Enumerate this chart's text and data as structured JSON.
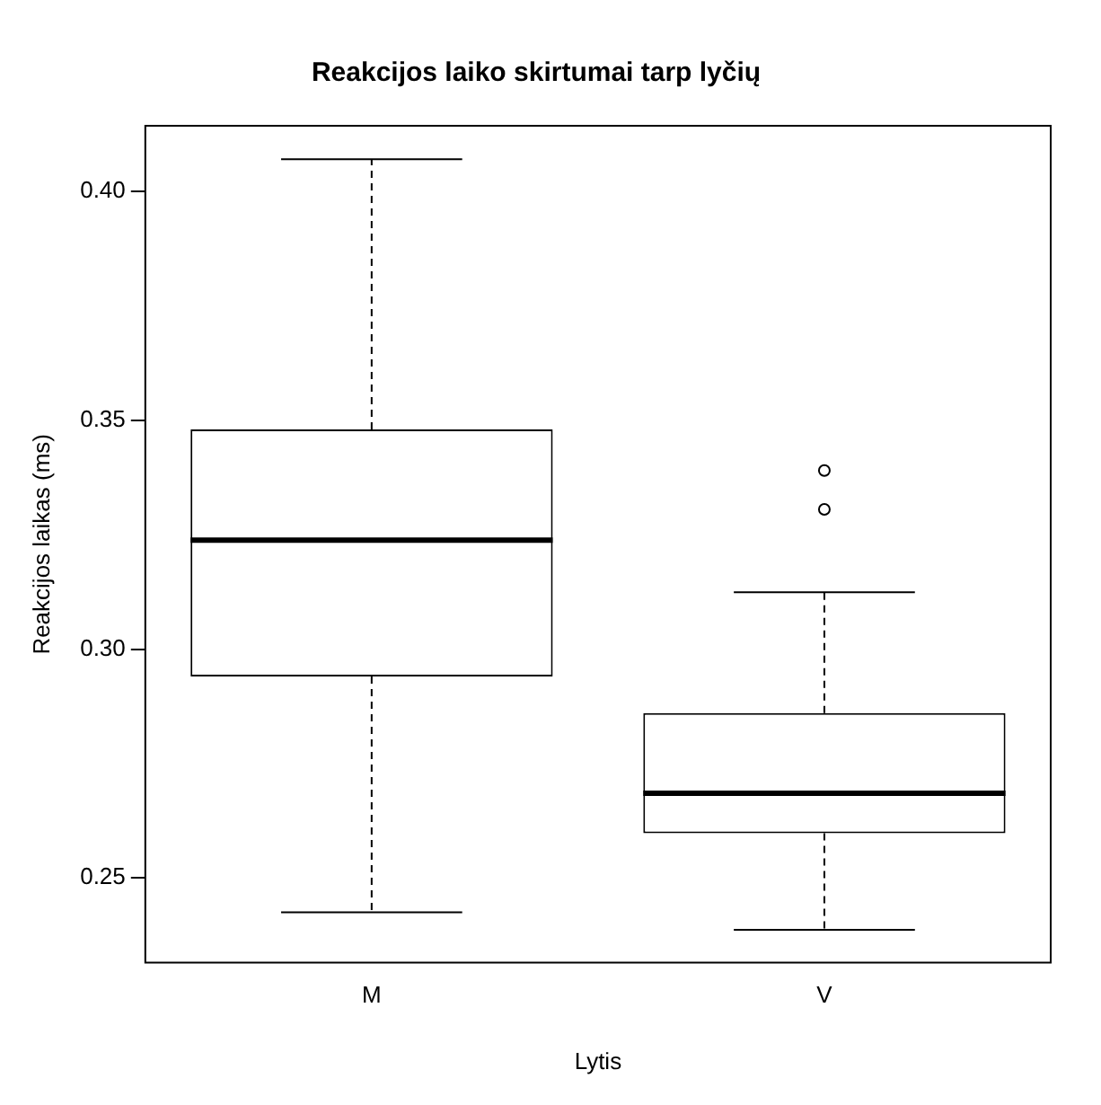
{
  "chart_data": {
    "type": "box",
    "title": "Reakcijos laiko skirtumai tarp lyčių",
    "xlabel": "Lytis",
    "ylabel": "Reakcijos laikas (ms)",
    "categories": [
      "M",
      "V"
    ],
    "color": "#000000",
    "grid": false,
    "legend": false,
    "boxes": [
      {
        "low": 0.2425,
        "q1": 0.294,
        "median": 0.3238,
        "q3": 0.348,
        "high": 0.407
      },
      {
        "low": 0.2387,
        "q1": 0.2598,
        "median": 0.2685,
        "q3": 0.286,
        "high": 0.3124,
        "outliers": [
          0.3305,
          0.339
        ]
      }
    ],
    "ylim": [
      0.2315,
      0.4143
    ],
    "yticks": [
      {
        "value": 0.25,
        "label": "0.25"
      },
      {
        "value": 0.3,
        "label": "0.30"
      },
      {
        "value": 0.35,
        "label": "0.35"
      },
      {
        "value": 0.4,
        "label": "0.40"
      }
    ]
  }
}
